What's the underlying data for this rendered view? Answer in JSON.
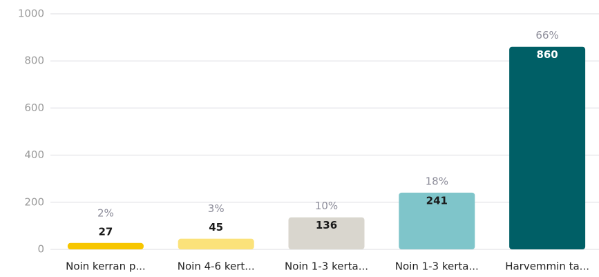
{
  "chart_data": {
    "type": "bar",
    "categories": [
      "Noin kerran p...",
      "Noin 4-6 kert...",
      "Noin 1-3 kerta...",
      "Noin 1-3 kerta...",
      "Harvemmin ta..."
    ],
    "values": [
      27,
      45,
      136,
      241,
      860
    ],
    "share_labels": [
      "2%",
      "3%",
      "10%",
      "18%",
      "66%"
    ],
    "colors": [
      "#f7c600",
      "#fbe27a",
      "#d9d6ce",
      "#7fc5ca",
      "#005f66"
    ],
    "ylim": [
      0,
      1000
    ],
    "yticks": [
      0,
      200,
      400,
      600,
      800,
      1000
    ],
    "grid": true
  }
}
